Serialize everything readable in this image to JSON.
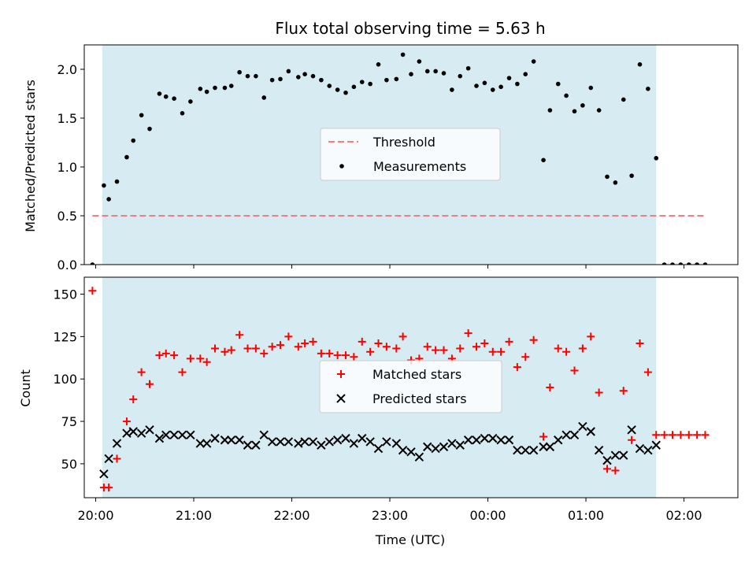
{
  "chart_data": [
    {
      "type": "scatter",
      "title": "Flux total observing time = 5.63 h",
      "ylabel": "Matched/Predicted stars",
      "xlabel": "",
      "x_unit": "time (UTC)",
      "xlim": [
        "19:53",
        "02:33"
      ],
      "ylim": [
        0,
        2.25
      ],
      "x_ticks": [
        "20:00",
        "21:00",
        "22:00",
        "23:00",
        "00:00",
        "01:00",
        "02:00"
      ],
      "y_ticks": [
        "0.0",
        "0.5",
        "1.0",
        "1.5",
        "2.0"
      ],
      "shaded_interval": [
        "20:04",
        "01:43"
      ],
      "shaded_color": "#add8e6",
      "threshold": {
        "name": "Threshold",
        "value": 0.5,
        "x_range": [
          "19:58",
          "02:13"
        ],
        "color": "#f08080",
        "style": "dashed"
      },
      "legend": {
        "placement": "center",
        "entries": [
          "Threshold",
          "Measurements"
        ]
      },
      "series": [
        {
          "name": "Measurements",
          "marker": "dot",
          "color": "#000000",
          "x": [
            "19:58",
            "20:05",
            "20:08",
            "20:13",
            "20:19",
            "20:23",
            "20:28",
            "20:33",
            "20:39",
            "20:43",
            "20:48",
            "20:53",
            "20:58",
            "21:04",
            "21:08",
            "21:13",
            "21:19",
            "21:23",
            "21:28",
            "21:33",
            "21:38",
            "21:43",
            "21:48",
            "21:53",
            "21:58",
            "22:04",
            "22:08",
            "22:13",
            "22:18",
            "22:23",
            "22:28",
            "22:33",
            "22:38",
            "22:43",
            "22:48",
            "22:53",
            "22:58",
            "23:04",
            "23:08",
            "23:13",
            "23:18",
            "23:23",
            "23:28",
            "23:33",
            "23:38",
            "23:43",
            "23:48",
            "23:53",
            "23:58",
            "00:03",
            "00:08",
            "00:13",
            "00:18",
            "00:23",
            "00:28",
            "00:34",
            "00:38",
            "00:43",
            "00:48",
            "00:53",
            "00:58",
            "01:03",
            "01:08",
            "01:13",
            "01:18",
            "01:23",
            "01:28",
            "01:33",
            "01:38",
            "01:43",
            "01:48",
            "01:53",
            "01:58",
            "02:03",
            "02:08",
            "02:13"
          ],
          "y": [
            0.0,
            0.81,
            0.67,
            0.85,
            1.1,
            1.27,
            1.53,
            1.39,
            1.75,
            1.72,
            1.7,
            1.55,
            1.67,
            1.8,
            1.77,
            1.81,
            1.81,
            1.83,
            1.97,
            1.93,
            1.93,
            1.71,
            1.89,
            1.9,
            1.98,
            1.92,
            1.95,
            1.93,
            1.89,
            1.83,
            1.79,
            1.76,
            1.82,
            1.87,
            1.85,
            2.05,
            1.89,
            1.9,
            2.15,
            1.95,
            2.08,
            1.98,
            1.98,
            1.96,
            1.79,
            1.93,
            2.01,
            1.83,
            1.86,
            1.79,
            1.82,
            1.91,
            1.85,
            1.95,
            2.08,
            1.07,
            1.58,
            1.85,
            1.73,
            1.57,
            1.63,
            1.81,
            1.58,
            0.9,
            0.84,
            1.69,
            0.91,
            2.05,
            1.8,
            1.09,
            0.0,
            0.0,
            0.0,
            0.0,
            0.0,
            0.0
          ]
        }
      ]
    },
    {
      "type": "scatter",
      "title": "",
      "xlabel": "Time (UTC)",
      "ylabel": "Count",
      "xlim": [
        "19:53",
        "02:33"
      ],
      "ylim": [
        30,
        160
      ],
      "x_ticks": [
        "20:00",
        "21:00",
        "22:00",
        "23:00",
        "00:00",
        "01:00",
        "02:00"
      ],
      "y_ticks": [
        "50",
        "75",
        "100",
        "125",
        "150"
      ],
      "shaded_interval": [
        "20:04",
        "01:43"
      ],
      "shaded_color": "#add8e6",
      "legend": {
        "placement": "center",
        "entries": [
          "Matched stars",
          "Predicted stars"
        ]
      },
      "series": [
        {
          "name": "Matched stars",
          "marker": "plus",
          "color": "#ff0000",
          "x": [
            "19:58",
            "20:05",
            "20:08",
            "20:13",
            "20:19",
            "20:23",
            "20:28",
            "20:33",
            "20:39",
            "20:43",
            "20:48",
            "20:53",
            "20:58",
            "21:04",
            "21:08",
            "21:13",
            "21:19",
            "21:23",
            "21:28",
            "21:33",
            "21:38",
            "21:43",
            "21:48",
            "21:53",
            "21:58",
            "22:04",
            "22:08",
            "22:13",
            "22:18",
            "22:23",
            "22:28",
            "22:33",
            "22:38",
            "22:43",
            "22:48",
            "22:53",
            "22:58",
            "23:04",
            "23:08",
            "23:13",
            "23:18",
            "23:23",
            "23:28",
            "23:33",
            "23:38",
            "23:43",
            "23:48",
            "23:53",
            "23:58",
            "00:03",
            "00:08",
            "00:13",
            "00:18",
            "00:23",
            "00:28",
            "00:34",
            "00:38",
            "00:43",
            "00:48",
            "00:53",
            "00:58",
            "01:03",
            "01:08",
            "01:13",
            "01:18",
            "01:23",
            "01:28",
            "01:33",
            "01:38",
            "01:43",
            "01:48",
            "01:53",
            "01:58",
            "02:03",
            "02:08",
            "02:13"
          ],
          "y": [
            152,
            36,
            36,
            53,
            75,
            88,
            104,
            97,
            114,
            115,
            114,
            104,
            112,
            112,
            110,
            118,
            116,
            117,
            126,
            118,
            118,
            115,
            119,
            120,
            125,
            119,
            121,
            122,
            115,
            115,
            114,
            114,
            113,
            122,
            116,
            121,
            119,
            118,
            125,
            111,
            112,
            119,
            117,
            117,
            112,
            118,
            127,
            119,
            121,
            116,
            116,
            122,
            107,
            113,
            123,
            66,
            95,
            118,
            116,
            105,
            118,
            125,
            92,
            47,
            46,
            93,
            64,
            121,
            104,
            67,
            67,
            67,
            67,
            67,
            67,
            67
          ]
        },
        {
          "name": "Predicted stars",
          "marker": "x",
          "color": "#000000",
          "x": [
            "20:05",
            "20:08",
            "20:13",
            "20:19",
            "20:23",
            "20:28",
            "20:33",
            "20:39",
            "20:43",
            "20:48",
            "20:53",
            "20:58",
            "21:04",
            "21:08",
            "21:13",
            "21:19",
            "21:23",
            "21:28",
            "21:33",
            "21:38",
            "21:43",
            "21:48",
            "21:53",
            "21:58",
            "22:04",
            "22:08",
            "22:13",
            "22:18",
            "22:23",
            "22:28",
            "22:33",
            "22:38",
            "22:43",
            "22:48",
            "22:53",
            "22:58",
            "23:04",
            "23:08",
            "23:13",
            "23:18",
            "23:23",
            "23:28",
            "23:33",
            "23:38",
            "23:43",
            "23:48",
            "23:53",
            "23:58",
            "00:03",
            "00:08",
            "00:13",
            "00:18",
            "00:23",
            "00:28",
            "00:34",
            "00:38",
            "00:43",
            "00:48",
            "00:53",
            "00:58",
            "01:03",
            "01:08",
            "01:13",
            "01:18",
            "01:23",
            "01:28",
            "01:33",
            "01:38",
            "01:43"
          ],
          "y": [
            44,
            53,
            62,
            68,
            69,
            68,
            70,
            65,
            67,
            67,
            67,
            67,
            62,
            62,
            65,
            64,
            64,
            64,
            61,
            61,
            67,
            63,
            63,
            63,
            62,
            63,
            63,
            61,
            63,
            64,
            65,
            62,
            65,
            63,
            59,
            63,
            62,
            58,
            57,
            54,
            60,
            59,
            60,
            62,
            61,
            64,
            64,
            65,
            65,
            64,
            64,
            58,
            58,
            58,
            60,
            60,
            64,
            67,
            67,
            72,
            69,
            58,
            52,
            55,
            55,
            70,
            59,
            58,
            61
          ]
        }
      ]
    }
  ]
}
